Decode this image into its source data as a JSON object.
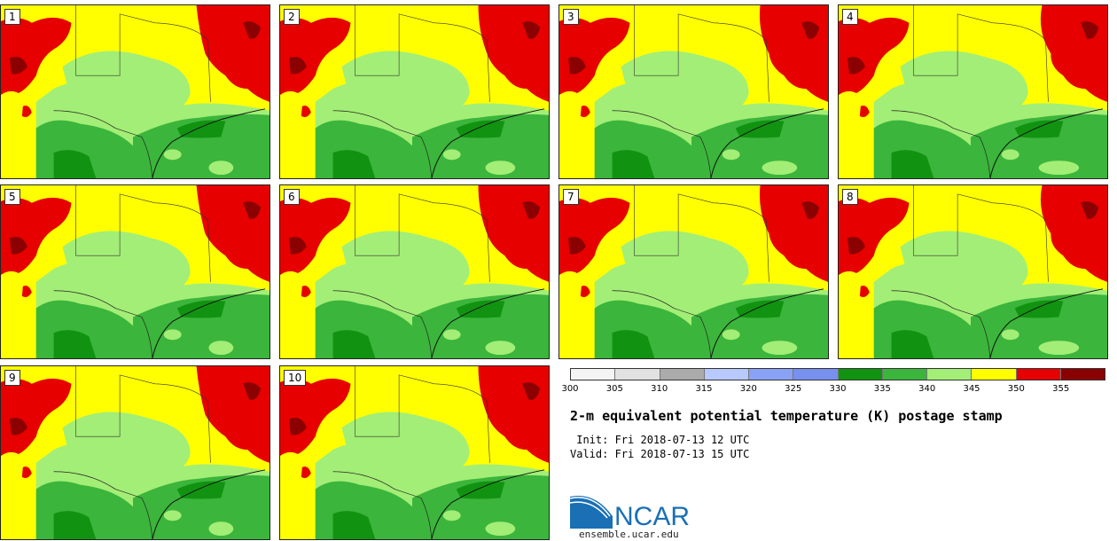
{
  "panels": [
    {
      "label": "1"
    },
    {
      "label": "2"
    },
    {
      "label": "3"
    },
    {
      "label": "4"
    },
    {
      "label": "5"
    },
    {
      "label": "6"
    },
    {
      "label": "7"
    },
    {
      "label": "8"
    },
    {
      "label": "9"
    },
    {
      "label": "10"
    }
  ],
  "legend": {
    "ticks": [
      "300",
      "305",
      "310",
      "315",
      "320",
      "325",
      "330",
      "335",
      "340",
      "345",
      "350",
      "355"
    ],
    "colors": [
      "#f4f4f4",
      "#e2e2e2",
      "#ababab",
      "#b7c9ff",
      "#8aa2f5",
      "#7891ee",
      "#119311",
      "#3bb53b",
      "#a3ee76",
      "#ffff00",
      "#e60000",
      "#8b0000"
    ]
  },
  "title": "2-m equivalent potential temperature (K) postage stamp",
  "init": " Init: Fri 2018-07-13 12 UTC",
  "valid": "Valid: Fri 2018-07-13 15 UTC",
  "logo": {
    "text": "NCAR",
    "url": "ensemble.ucar.edu"
  },
  "map_colors": {
    "yellow": "#ffff00",
    "red": "#e60000",
    "darkred": "#8b0000",
    "lightgreen": "#a3ee76",
    "green": "#3bb53b",
    "darkgreen": "#119311"
  }
}
